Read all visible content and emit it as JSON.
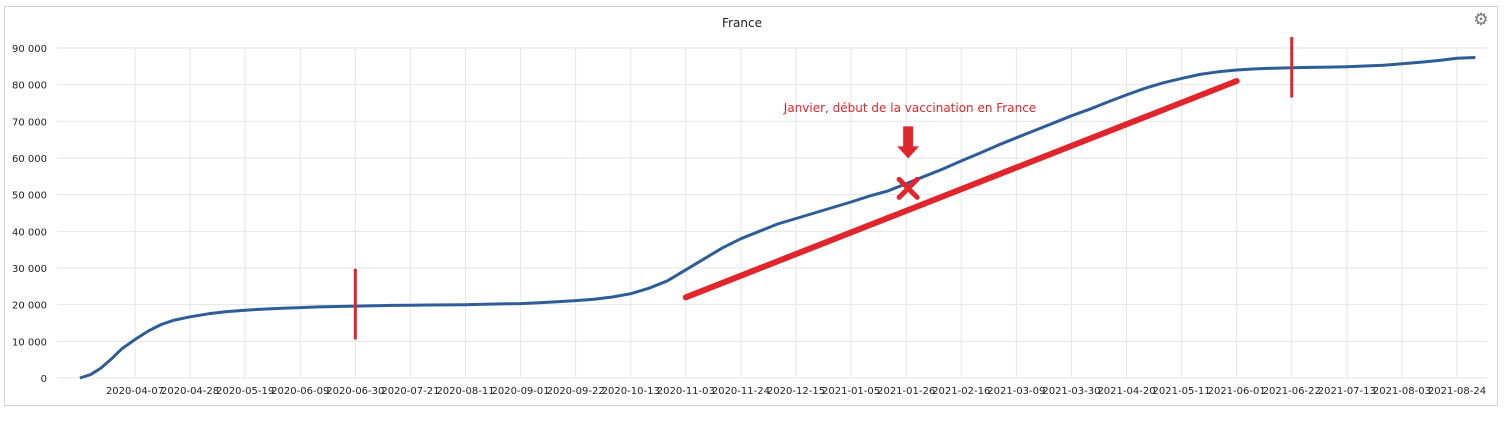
{
  "chart_data": {
    "type": "line",
    "title": "France",
    "xlabel": "",
    "ylabel": "",
    "ylim": [
      0,
      90000
    ],
    "y_ticks": [
      0,
      10000,
      20000,
      30000,
      40000,
      50000,
      60000,
      70000,
      80000,
      90000
    ],
    "y_tick_labels": [
      "0",
      "10 000",
      "20 000",
      "30 000",
      "40 000",
      "50 000",
      "60 000",
      "70 000",
      "80 000",
      "90 000"
    ],
    "x_tick_labels": [
      "2020-04-07",
      "2020-04-28",
      "2020-05-19",
      "2020-06-09",
      "2020-06-30",
      "2020-07-21",
      "2020-08-11",
      "2020-09-01",
      "2020-09-22",
      "2020-10-13",
      "2020-11-03",
      "2020-11-24",
      "2020-12-15",
      "2021-01-05",
      "2021-01-26",
      "2021-02-16",
      "2021-03-09",
      "2021-03-30",
      "2021-04-20",
      "2021-05-11",
      "2021-06-01",
      "2021-06-22",
      "2021-07-13",
      "2021-08-03",
      "2021-08-24"
    ],
    "grid": true,
    "series": [
      {
        "color": "#2f5d98",
        "x": [
          "2020-03-17",
          "2020-03-21",
          "2020-03-25",
          "2020-03-29",
          "2020-04-02",
          "2020-04-07",
          "2020-04-12",
          "2020-04-17",
          "2020-04-22",
          "2020-04-28",
          "2020-05-05",
          "2020-05-12",
          "2020-05-19",
          "2020-05-26",
          "2020-06-02",
          "2020-06-09",
          "2020-06-16",
          "2020-06-23",
          "2020-06-30",
          "2020-07-07",
          "2020-07-14",
          "2020-07-21",
          "2020-07-28",
          "2020-08-04",
          "2020-08-11",
          "2020-08-18",
          "2020-08-25",
          "2020-09-01",
          "2020-09-08",
          "2020-09-15",
          "2020-09-22",
          "2020-09-29",
          "2020-10-06",
          "2020-10-13",
          "2020-10-20",
          "2020-10-27",
          "2020-11-03",
          "2020-11-10",
          "2020-11-17",
          "2020-11-24",
          "2020-12-01",
          "2020-12-08",
          "2020-12-15",
          "2020-12-22",
          "2020-12-29",
          "2021-01-05",
          "2021-01-12",
          "2021-01-19",
          "2021-01-26",
          "2021-02-02",
          "2021-02-09",
          "2021-02-16",
          "2021-02-23",
          "2021-03-02",
          "2021-03-09",
          "2021-03-16",
          "2021-03-23",
          "2021-03-30",
          "2021-04-06",
          "2021-04-13",
          "2021-04-20",
          "2021-04-27",
          "2021-05-04",
          "2021-05-11",
          "2021-05-18",
          "2021-05-25",
          "2021-06-01",
          "2021-06-08",
          "2021-06-15",
          "2021-06-22",
          "2021-06-29",
          "2021-07-06",
          "2021-07-13",
          "2021-07-20",
          "2021-07-27",
          "2021-08-03",
          "2021-08-10",
          "2021-08-17",
          "2021-08-24",
          "2021-08-31"
        ],
        "values": [
          0,
          900,
          2700,
          5200,
          8000,
          10500,
          12800,
          14600,
          15800,
          16700,
          17500,
          18100,
          18500,
          18800,
          19000,
          19200,
          19400,
          19500,
          19600,
          19700,
          19800,
          19850,
          19900,
          19950,
          20000,
          20100,
          20200,
          20300,
          20500,
          20800,
          21100,
          21500,
          22100,
          23000,
          24500,
          26500,
          29500,
          32500,
          35500,
          38000,
          40000,
          42000,
          43500,
          45000,
          46500,
          48000,
          49600,
          51000,
          53000,
          55000,
          57000,
          59200,
          61300,
          63500,
          65500,
          67500,
          69500,
          71500,
          73300,
          75300,
          77200,
          79000,
          80500,
          81700,
          82800,
          83500,
          84000,
          84300,
          84500,
          84600,
          84700,
          84800,
          84900,
          85100,
          85300,
          85700,
          86100,
          86600,
          87200,
          87400
        ]
      }
    ],
    "annotations": {
      "text": "Janvier, début de la vaccination en France",
      "color": "#e0262c",
      "marker_date": "2021-01-26",
      "marker_value": 52000,
      "trend_line": {
        "x_start": "2020-11-03",
        "y_start": 22000,
        "x_end": "2021-06-01",
        "y_end": 81000
      },
      "vertical_marks": [
        {
          "x": "2020-06-30",
          "y_from": 10500,
          "y_to": 29800
        },
        {
          "x": "2021-06-22",
          "y_from": 76500,
          "y_to": 93000
        }
      ]
    }
  },
  "settings_icon": "gear-icon"
}
